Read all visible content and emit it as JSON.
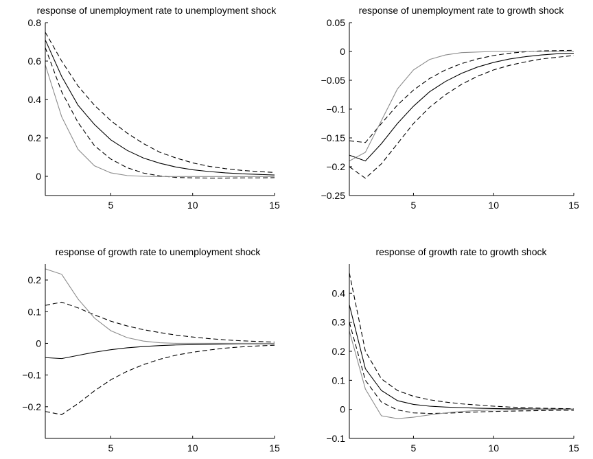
{
  "chart_data": [
    {
      "type": "line",
      "title": "response of unemployment rate to unemployment shock",
      "xlim": [
        1,
        15
      ],
      "ylim": [
        -0.1,
        0.8
      ],
      "xticks": [
        5,
        10,
        15
      ],
      "yticks": [
        0,
        0.2,
        0.4,
        0.6,
        0.8
      ],
      "ytick_labels": [
        "0",
        "0.2",
        "0.4",
        "0.6",
        "0.8"
      ],
      "x": [
        1,
        2,
        3,
        4,
        5,
        6,
        7,
        8,
        9,
        10,
        11,
        12,
        13,
        14,
        15
      ],
      "series": [
        {
          "style": "solid",
          "color": "#000000",
          "values": [
            0.71,
            0.52,
            0.37,
            0.27,
            0.19,
            0.135,
            0.095,
            0.068,
            0.048,
            0.034,
            0.025,
            0.018,
            0.013,
            0.01,
            0.007
          ]
        },
        {
          "style": "dashed",
          "color": "#000000",
          "values": [
            0.75,
            0.6,
            0.47,
            0.37,
            0.29,
            0.225,
            0.17,
            0.125,
            0.095,
            0.07,
            0.052,
            0.04,
            0.031,
            0.025,
            0.02
          ]
        },
        {
          "style": "dashed",
          "color": "#000000",
          "values": [
            0.67,
            0.44,
            0.28,
            0.16,
            0.09,
            0.045,
            0.017,
            0.002,
            -0.006,
            -0.008,
            -0.009,
            -0.009,
            -0.008,
            -0.008,
            -0.007
          ]
        },
        {
          "style": "solid",
          "color": "#8c8c8c",
          "values": [
            0.58,
            0.31,
            0.14,
            0.055,
            0.018,
            0.004,
            0.0,
            -0.001,
            -0.001,
            -0.001,
            -0.001,
            -0.001,
            -0.001,
            -0.001,
            -0.001
          ]
        }
      ]
    },
    {
      "type": "line",
      "title": "response of unemployment rate to growth shock",
      "xlim": [
        1,
        15
      ],
      "ylim": [
        -0.25,
        0.05
      ],
      "xticks": [
        5,
        10,
        15
      ],
      "yticks": [
        -0.25,
        -0.2,
        -0.15,
        -0.1,
        -0.05,
        0,
        0.05
      ],
      "ytick_labels": [
        "−0.25",
        "−0.2",
        "−0.15",
        "−0.1",
        "−0.05",
        "0",
        "0.05"
      ],
      "x": [
        1,
        2,
        3,
        4,
        5,
        6,
        7,
        8,
        9,
        10,
        11,
        12,
        13,
        14,
        15
      ],
      "series": [
        {
          "style": "solid",
          "color": "#000000",
          "values": [
            -0.18,
            -0.19,
            -0.16,
            -0.125,
            -0.095,
            -0.07,
            -0.052,
            -0.038,
            -0.027,
            -0.019,
            -0.013,
            -0.009,
            -0.006,
            -0.004,
            -0.003
          ]
        },
        {
          "style": "dashed",
          "color": "#000000",
          "values": [
            -0.155,
            -0.158,
            -0.125,
            -0.093,
            -0.067,
            -0.047,
            -0.032,
            -0.021,
            -0.013,
            -0.007,
            -0.003,
            -0.0005,
            0.001,
            0.0015,
            0.002
          ]
        },
        {
          "style": "dashed",
          "color": "#000000",
          "values": [
            -0.2,
            -0.22,
            -0.195,
            -0.16,
            -0.125,
            -0.097,
            -0.075,
            -0.057,
            -0.043,
            -0.032,
            -0.024,
            -0.018,
            -0.013,
            -0.01,
            -0.007
          ]
        },
        {
          "style": "solid",
          "color": "#8c8c8c",
          "values": [
            -0.19,
            -0.175,
            -0.12,
            -0.065,
            -0.032,
            -0.014,
            -0.006,
            -0.002,
            -0.001,
            0.0,
            0.0,
            0.0,
            0.0,
            0.0,
            0.0
          ]
        }
      ]
    },
    {
      "type": "line",
      "title": "response of growth rate to unemployment shock",
      "xlim": [
        1,
        15
      ],
      "ylim": [
        -0.3,
        0.25
      ],
      "xticks": [
        5,
        10,
        15
      ],
      "yticks": [
        -0.2,
        -0.1,
        0,
        0.1,
        0.2
      ],
      "ytick_labels": [
        "−0.2",
        "−0.1",
        "0",
        "0.1",
        "0.2"
      ],
      "x": [
        1,
        2,
        3,
        4,
        5,
        6,
        7,
        8,
        9,
        10,
        11,
        12,
        13,
        14,
        15
      ],
      "series": [
        {
          "style": "solid",
          "color": "#000000",
          "values": [
            -0.045,
            -0.048,
            -0.038,
            -0.028,
            -0.02,
            -0.014,
            -0.01,
            -0.007,
            -0.005,
            -0.004,
            -0.003,
            -0.002,
            -0.001,
            -0.001,
            -0.001
          ]
        },
        {
          "style": "dashed",
          "color": "#000000",
          "values": [
            0.12,
            0.13,
            0.112,
            0.09,
            0.07,
            0.055,
            0.043,
            0.034,
            0.026,
            0.02,
            0.015,
            0.011,
            0.008,
            0.006,
            0.004
          ]
        },
        {
          "style": "dashed",
          "color": "#000000",
          "values": [
            -0.215,
            -0.225,
            -0.19,
            -0.15,
            -0.115,
            -0.088,
            -0.067,
            -0.05,
            -0.037,
            -0.028,
            -0.021,
            -0.015,
            -0.011,
            -0.008,
            -0.006
          ]
        },
        {
          "style": "solid",
          "color": "#8c8c8c",
          "values": [
            0.235,
            0.218,
            0.14,
            0.08,
            0.04,
            0.018,
            0.007,
            0.002,
            0.0,
            0.0,
            0.0,
            0.0,
            0.0,
            0.0,
            0.0
          ]
        }
      ]
    },
    {
      "type": "line",
      "title": "response of growth rate to growth shock",
      "xlim": [
        1,
        15
      ],
      "ylim": [
        -0.1,
        0.5
      ],
      "xticks": [
        5,
        10,
        15
      ],
      "yticks": [
        -0.1,
        0,
        0.1,
        0.2,
        0.3,
        0.4
      ],
      "ytick_labels": [
        "−0.1",
        "0",
        "0.1",
        "0.2",
        "0.3",
        "0.4"
      ],
      "x": [
        1,
        2,
        3,
        4,
        5,
        6,
        7,
        8,
        9,
        10,
        11,
        12,
        13,
        14,
        15
      ],
      "series": [
        {
          "style": "solid",
          "color": "#000000",
          "values": [
            0.36,
            0.14,
            0.065,
            0.03,
            0.017,
            0.011,
            0.008,
            0.006,
            0.004,
            0.003,
            0.002,
            0.002,
            0.001,
            0.001,
            0.001
          ]
        },
        {
          "style": "dashed",
          "color": "#000000",
          "values": [
            0.47,
            0.2,
            0.105,
            0.065,
            0.045,
            0.033,
            0.025,
            0.019,
            0.015,
            0.011,
            0.008,
            0.006,
            0.004,
            0.003,
            0.002
          ]
        },
        {
          "style": "dashed",
          "color": "#000000",
          "values": [
            0.3,
            0.1,
            0.025,
            -0.002,
            -0.012,
            -0.014,
            -0.013,
            -0.011,
            -0.009,
            -0.007,
            -0.006,
            -0.005,
            -0.004,
            -0.003,
            -0.003
          ]
        },
        {
          "style": "solid",
          "color": "#8c8c8c",
          "values": [
            0.27,
            0.07,
            -0.022,
            -0.032,
            -0.027,
            -0.019,
            -0.012,
            -0.007,
            -0.004,
            -0.002,
            -0.001,
            0.0,
            0.0,
            0.0,
            0.0
          ]
        }
      ]
    }
  ]
}
